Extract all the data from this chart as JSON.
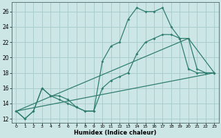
{
  "background_color": "#cce5e5",
  "grid_color": "#aacccc",
  "line_color": "#2e7d6e",
  "xlabel": "Humidex (Indice chaleur)",
  "xlim": [
    -0.5,
    23.5
  ],
  "ylim": [
    11.5,
    27.2
  ],
  "xticks": [
    0,
    1,
    2,
    3,
    4,
    5,
    6,
    7,
    8,
    9,
    10,
    11,
    12,
    13,
    14,
    15,
    16,
    17,
    18,
    19,
    20,
    21,
    22,
    23
  ],
  "yticks": [
    12,
    14,
    16,
    18,
    20,
    22,
    24,
    26
  ],
  "series": [
    {
      "x": [
        0,
        1,
        2,
        3,
        4,
        5,
        6,
        7,
        8,
        9,
        10,
        11,
        12,
        13,
        14,
        15,
        16,
        17,
        18,
        19,
        20,
        21,
        22,
        23
      ],
      "y": [
        13,
        12,
        13,
        16,
        15,
        15,
        14.5,
        13.5,
        13,
        13,
        19.5,
        21.5,
        22,
        25,
        26.5,
        26,
        26,
        26.5,
        24,
        22.5,
        18.5,
        18,
        18,
        18
      ],
      "marker": true
    },
    {
      "x": [
        0,
        1,
        2,
        3,
        4,
        5,
        6,
        7,
        8,
        9,
        10,
        11,
        12,
        13,
        14,
        15,
        16,
        17,
        18,
        19,
        20,
        21,
        22,
        23
      ],
      "y": [
        13,
        12,
        13,
        16,
        15,
        14.5,
        14,
        13.5,
        13,
        13,
        16,
        17,
        17.5,
        18,
        20.5,
        22,
        22.5,
        23,
        23,
        22.5,
        22.5,
        18.5,
        18,
        18
      ],
      "marker": true
    },
    {
      "x": [
        0,
        20,
        23
      ],
      "y": [
        13,
        22.5,
        18
      ],
      "marker": false
    },
    {
      "x": [
        0,
        23
      ],
      "y": [
        13,
        18
      ],
      "marker": false
    }
  ]
}
